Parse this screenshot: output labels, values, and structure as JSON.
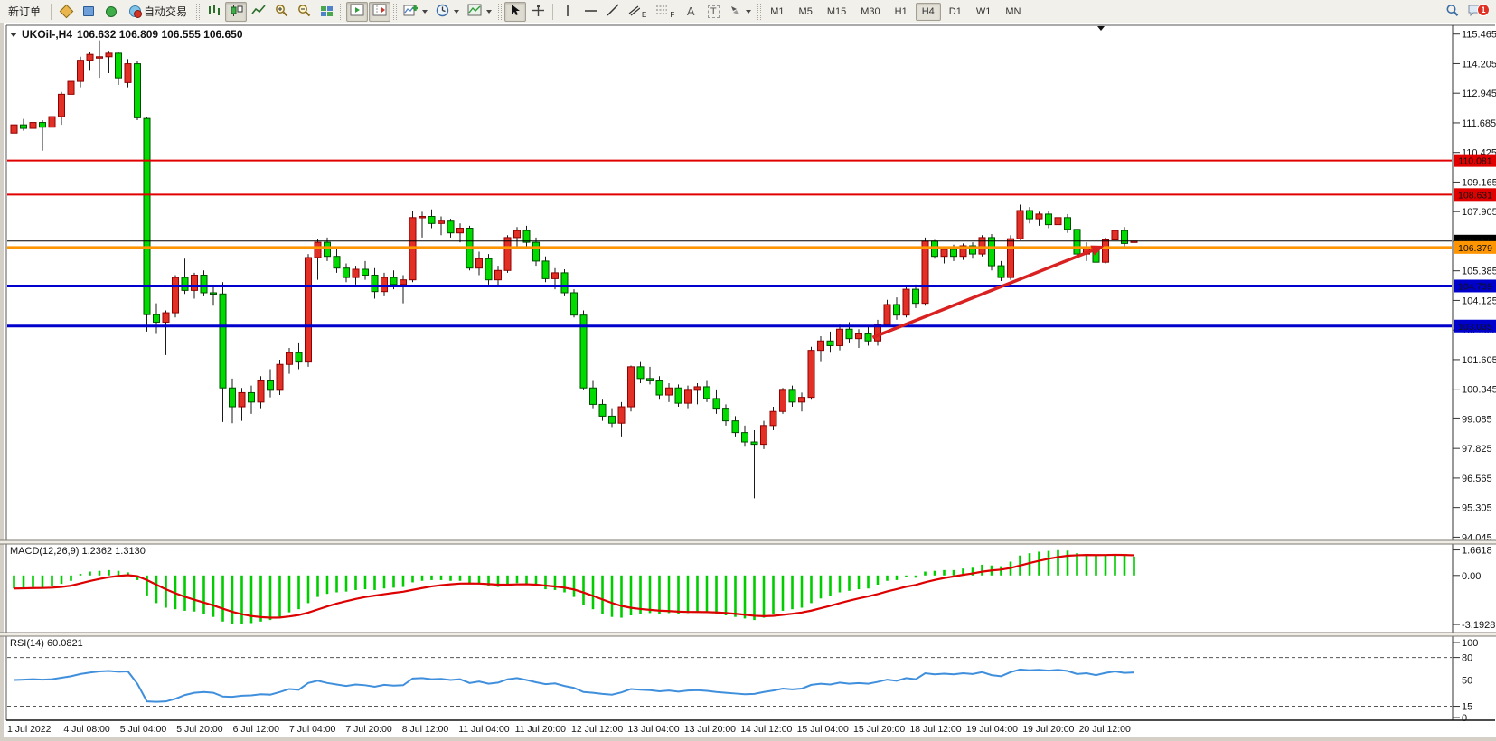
{
  "toolbar": {
    "new_order_label": "新订单",
    "auto_trading_label": "自动交易",
    "tool_letter_a": "A",
    "tool_letter_t": "T",
    "channel_subscript": "E",
    "fibonacci_subscript": "F",
    "timeframes": [
      "M1",
      "M5",
      "M15",
      "M30",
      "H1",
      "H4",
      "D1",
      "W1",
      "MN"
    ],
    "active_timeframe": "H4",
    "notification_badge": "1"
  },
  "chart_header": {
    "symbol_period": "UKOil-,H4",
    "ohlc_values": "106.632 106.809 106.555 106.650"
  },
  "indicator_labels": {
    "macd": "MACD(12,26,9) 1.2362 1.3130",
    "rsi": "RSI(14) 60.0821"
  },
  "colors": {
    "bull_fill": "#e33026",
    "bull_border": "#8f0000",
    "bear_fill": "#00dc00",
    "bear_border": "#004d00",
    "wick": "#1a1a1a",
    "macd_hist": "#00cc00",
    "macd_signal": "#dd0000",
    "rsi_line": "#3f8fdc",
    "arrow": "#d92121",
    "axis_text": "#111111"
  },
  "chart_data": [
    {
      "type": "candlestick",
      "title": "UKOil-,H4",
      "x_labels": [
        "1 Jul 2022",
        "4 Jul 08:00",
        "5 Jul 04:00",
        "5 Jul 20:00",
        "6 Jul 12:00",
        "7 Jul 04:00",
        "7 Jul 20:00",
        "8 Jul 12:00",
        "11 Jul 04:00",
        "11 Jul 20:00",
        "12 Jul 12:00",
        "13 Jul 04:00",
        "13 Jul 20:00",
        "14 Jul 12:00",
        "15 Jul 04:00",
        "15 Jul 20:00",
        "18 Jul 12:00",
        "19 Jul 04:00",
        "19 Jul 20:00",
        "20 Jul 12:00"
      ],
      "y_ticks": [
        115.465,
        114.205,
        112.945,
        111.685,
        110.425,
        109.165,
        107.905,
        106.645,
        105.385,
        104.125,
        102.865,
        101.605,
        100.345,
        99.085,
        97.825,
        96.565,
        95.305,
        94.045
      ],
      "ohlc": [
        [
          111.25,
          111.8,
          111.05,
          111.6
        ],
        [
          111.6,
          111.85,
          111.35,
          111.45
        ],
        [
          111.45,
          111.8,
          111.2,
          111.7
        ],
        [
          111.7,
          111.8,
          110.5,
          111.5
        ],
        [
          111.5,
          112.0,
          111.3,
          111.95
        ],
        [
          111.95,
          113.0,
          111.6,
          112.9
        ],
        [
          112.9,
          113.6,
          112.6,
          113.45
        ],
        [
          113.45,
          114.5,
          113.2,
          114.35
        ],
        [
          114.35,
          114.7,
          113.9,
          114.6
        ],
        [
          114.45,
          115.2,
          113.6,
          114.5
        ],
        [
          114.5,
          114.75,
          113.8,
          114.65
        ],
        [
          114.65,
          114.7,
          113.3,
          113.6
        ],
        [
          113.4,
          114.4,
          113.2,
          114.2
        ],
        [
          114.2,
          114.3,
          111.8,
          111.9
        ],
        [
          111.87,
          111.95,
          102.8,
          103.52
        ],
        [
          103.52,
          104.0,
          102.7,
          103.2
        ],
        [
          103.2,
          103.7,
          101.8,
          103.6
        ],
        [
          103.6,
          105.2,
          103.4,
          105.1
        ],
        [
          105.1,
          105.9,
          104.4,
          104.55
        ],
        [
          104.55,
          105.3,
          104.2,
          105.2
        ],
        [
          105.2,
          105.4,
          104.3,
          104.45
        ],
        [
          104.45,
          104.7,
          103.9,
          104.4
        ],
        [
          104.4,
          104.9,
          98.95,
          100.4
        ],
        [
          100.4,
          100.8,
          98.9,
          99.6
        ],
        [
          99.6,
          100.4,
          99.0,
          100.2
        ],
        [
          100.2,
          100.5,
          99.3,
          99.8
        ],
        [
          99.8,
          100.9,
          99.5,
          100.7
        ],
        [
          100.7,
          101.2,
          100.0,
          100.3
        ],
        [
          100.3,
          101.6,
          100.1,
          101.4
        ],
        [
          101.4,
          102.1,
          101.0,
          101.9
        ],
        [
          101.9,
          102.3,
          101.2,
          101.5
        ],
        [
          101.5,
          106.1,
          101.3,
          105.95
        ],
        [
          105.95,
          106.75,
          105.0,
          106.6
        ],
        [
          106.6,
          106.8,
          105.8,
          106.0
        ],
        [
          106.0,
          106.3,
          105.3,
          105.5
        ],
        [
          105.5,
          105.7,
          104.9,
          105.1
        ],
        [
          105.1,
          105.6,
          104.8,
          105.45
        ],
        [
          105.45,
          105.8,
          105.0,
          105.2
        ],
        [
          105.2,
          105.5,
          104.2,
          104.5
        ],
        [
          104.5,
          105.3,
          104.3,
          105.1
        ],
        [
          105.1,
          105.4,
          104.6,
          104.8
        ],
        [
          104.8,
          105.2,
          104.0,
          105.0
        ],
        [
          105.0,
          107.95,
          104.9,
          107.65
        ],
        [
          107.65,
          107.9,
          106.8,
          107.7
        ],
        [
          107.7,
          108.0,
          107.2,
          107.4
        ],
        [
          107.4,
          107.7,
          106.9,
          107.5
        ],
        [
          107.5,
          107.6,
          106.8,
          107.0
        ],
        [
          107.0,
          107.4,
          106.6,
          107.2
        ],
        [
          107.2,
          107.3,
          105.4,
          105.5
        ],
        [
          105.5,
          106.2,
          105.2,
          105.9
        ],
        [
          105.9,
          106.1,
          104.8,
          105.0
        ],
        [
          105.0,
          105.6,
          104.7,
          105.4
        ],
        [
          105.4,
          106.9,
          105.3,
          106.8
        ],
        [
          106.8,
          107.25,
          106.3,
          107.1
        ],
        [
          107.1,
          107.3,
          106.4,
          106.6
        ],
        [
          106.6,
          106.8,
          105.6,
          105.8
        ],
        [
          105.8,
          106.0,
          104.9,
          105.05
        ],
        [
          105.05,
          105.5,
          104.6,
          105.3
        ],
        [
          105.3,
          105.45,
          104.3,
          104.45
        ],
        [
          104.45,
          104.6,
          103.4,
          103.5
        ],
        [
          103.5,
          103.7,
          100.3,
          100.4
        ],
        [
          100.4,
          100.7,
          99.5,
          99.7
        ],
        [
          99.7,
          99.9,
          99.0,
          99.2
        ],
        [
          99.2,
          99.5,
          98.7,
          98.9
        ],
        [
          98.9,
          99.8,
          98.3,
          99.6
        ],
        [
          99.6,
          101.35,
          99.4,
          101.3
        ],
        [
          101.3,
          101.5,
          100.6,
          100.8
        ],
        [
          100.8,
          101.3,
          100.55,
          100.7
        ],
        [
          100.7,
          100.9,
          99.9,
          100.1
        ],
        [
          100.1,
          100.6,
          99.8,
          100.4
        ],
        [
          100.4,
          100.55,
          99.6,
          99.75
        ],
        [
          99.75,
          100.5,
          99.5,
          100.3
        ],
        [
          100.3,
          100.6,
          99.7,
          100.45
        ],
        [
          100.45,
          100.7,
          99.8,
          99.95
        ],
        [
          99.95,
          100.3,
          99.3,
          99.5
        ],
        [
          99.5,
          99.7,
          98.8,
          99.0
        ],
        [
          99.0,
          99.2,
          98.3,
          98.5
        ],
        [
          98.5,
          98.8,
          97.9,
          98.1
        ],
        [
          98.1,
          98.6,
          95.7,
          98.0
        ],
        [
          98.0,
          99.0,
          97.8,
          98.8
        ],
        [
          98.8,
          99.6,
          98.6,
          99.4
        ],
        [
          99.4,
          100.4,
          99.3,
          100.3
        ],
        [
          100.3,
          100.5,
          99.6,
          99.8
        ],
        [
          99.8,
          100.2,
          99.4,
          100.0
        ],
        [
          100.0,
          102.15,
          99.9,
          102.0
        ],
        [
          102.0,
          102.6,
          101.5,
          102.4
        ],
        [
          102.4,
          102.8,
          101.9,
          102.2
        ],
        [
          102.2,
          103.1,
          102.0,
          102.9
        ],
        [
          102.9,
          103.2,
          102.3,
          102.5
        ],
        [
          102.5,
          102.9,
          102.1,
          102.7
        ],
        [
          102.7,
          103.0,
          102.2,
          102.4
        ],
        [
          102.4,
          103.3,
          102.2,
          103.1
        ],
        [
          103.1,
          104.15,
          103.0,
          103.95
        ],
        [
          103.95,
          104.25,
          103.3,
          103.5
        ],
        [
          103.5,
          104.75,
          103.4,
          104.6
        ],
        [
          104.6,
          104.8,
          103.8,
          104.0
        ],
        [
          104.0,
          106.8,
          103.9,
          106.65
        ],
        [
          106.65,
          106.7,
          105.9,
          106.0
        ],
        [
          106.0,
          106.4,
          105.7,
          106.3
        ],
        [
          106.3,
          106.5,
          105.8,
          106.0
        ],
        [
          106.0,
          106.55,
          105.85,
          106.45
        ],
        [
          106.45,
          106.6,
          105.9,
          106.1
        ],
        [
          106.1,
          106.9,
          106.0,
          106.8
        ],
        [
          106.8,
          106.95,
          105.4,
          105.6
        ],
        [
          105.6,
          105.8,
          104.95,
          105.1
        ],
        [
          105.1,
          106.9,
          105.0,
          106.75
        ],
        [
          106.75,
          108.2,
          106.7,
          107.95
        ],
        [
          107.95,
          108.1,
          107.4,
          107.6
        ],
        [
          107.6,
          107.9,
          107.3,
          107.8
        ],
        [
          107.8,
          107.95,
          107.2,
          107.35
        ],
        [
          107.35,
          107.75,
          107.1,
          107.65
        ],
        [
          107.65,
          107.8,
          107.0,
          107.15
        ],
        [
          107.15,
          107.3,
          105.9,
          106.1
        ],
        [
          106.1,
          106.6,
          105.8,
          106.4
        ],
        [
          106.4,
          106.55,
          105.6,
          105.75
        ],
        [
          105.75,
          106.8,
          105.7,
          106.7
        ],
        [
          106.7,
          107.3,
          106.4,
          107.1
        ],
        [
          107.1,
          107.25,
          106.4,
          106.55
        ],
        [
          106.632,
          106.809,
          106.555,
          106.65
        ]
      ],
      "hlines": [
        {
          "price": 110.081,
          "label": "110.081",
          "color": "#e00000",
          "width": 2
        },
        {
          "price": 108.631,
          "label": "108.631",
          "color": "#e00000",
          "width": 2
        },
        {
          "price": 106.65,
          "label": "106.650",
          "color": "#000000",
          "width": 1
        },
        {
          "price": 106.379,
          "label": "106.379",
          "color": "#ff9500",
          "width": 3
        },
        {
          "price": 104.739,
          "label": "104.739",
          "color": "#0000cc",
          "width": 3
        },
        {
          "price": 103.035,
          "label": "103.035",
          "color": "#0000cc",
          "width": 3
        }
      ],
      "arrow": {
        "bar1": 90.8,
        "price1": 102.55,
        "bar2": 115.2,
        "price2": 106.45
      }
    },
    {
      "type": "bar",
      "name": "MACD",
      "label": "MACD(12,26,9) 1.2362 1.3130",
      "values": [
        -0.85,
        -0.8,
        -0.75,
        -0.8,
        -0.7,
        -0.55,
        -0.35,
        0.1,
        0.25,
        0.3,
        0.35,
        0.3,
        0.2,
        -0.3,
        -1.3,
        -1.8,
        -2.1,
        -2.2,
        -2.3,
        -2.35,
        -2.5,
        -2.7,
        -3.0,
        -3.19,
        -3.15,
        -3.1,
        -3.0,
        -2.9,
        -2.7,
        -2.4,
        -2.2,
        -1.8,
        -1.4,
        -1.2,
        -1.1,
        -1.05,
        -0.95,
        -0.9,
        -0.95,
        -0.85,
        -0.8,
        -0.75,
        -0.45,
        -0.35,
        -0.3,
        -0.3,
        -0.35,
        -0.35,
        -0.5,
        -0.55,
        -0.7,
        -0.75,
        -0.6,
        -0.5,
        -0.55,
        -0.7,
        -0.9,
        -0.95,
        -1.1,
        -1.4,
        -1.9,
        -2.2,
        -2.5,
        -2.7,
        -2.75,
        -2.6,
        -2.5,
        -2.45,
        -2.5,
        -2.45,
        -2.5,
        -2.45,
        -2.4,
        -2.4,
        -2.5,
        -2.6,
        -2.7,
        -2.8,
        -2.9,
        -2.75,
        -2.55,
        -2.3,
        -2.2,
        -2.1,
        -1.8,
        -1.5,
        -1.35,
        -1.1,
        -1.0,
        -0.9,
        -0.85,
        -0.6,
        -0.35,
        -0.3,
        -0.1,
        -0.15,
        0.25,
        0.3,
        0.35,
        0.35,
        0.45,
        0.5,
        0.7,
        0.65,
        0.6,
        0.9,
        1.3,
        1.45,
        1.55,
        1.6,
        1.65,
        1.62,
        1.45,
        1.4,
        1.3,
        1.35,
        1.4,
        1.3,
        1.2362
      ],
      "y_tick_labels": [
        "1.6618",
        "0.00",
        "-3.1928"
      ],
      "y_tick_values": [
        1.6618,
        0,
        -3.1928
      ]
    },
    {
      "type": "line",
      "name": "RSI",
      "label": "RSI(14) 60.0821",
      "values": [
        50,
        50.5,
        51,
        50.5,
        51,
        53,
        55,
        58,
        60,
        61.5,
        62,
        61,
        61.5,
        45,
        21.5,
        21,
        21.5,
        25,
        30,
        33,
        34,
        33,
        28,
        27.5,
        29,
        29.5,
        31,
        30.5,
        34,
        38,
        37,
        46,
        49,
        46,
        44,
        42,
        44,
        43,
        41,
        43.5,
        42.5,
        43,
        52,
        52.5,
        51,
        51.5,
        50,
        51,
        46,
        48,
        45,
        46.5,
        51,
        52.5,
        50,
        47,
        44.5,
        45.5,
        42,
        39.5,
        34,
        33,
        31.5,
        30.5,
        33.5,
        38,
        37,
        36.5,
        35,
        36,
        34.5,
        36,
        36.5,
        35.5,
        34,
        33,
        32,
        31,
        31.5,
        34,
        36,
        38.5,
        37.5,
        38.5,
        43.5,
        45,
        44,
        46.5,
        45,
        46,
        45,
        47.5,
        50.5,
        49,
        52.5,
        51,
        59,
        57.5,
        58.5,
        57.5,
        59,
        58,
        60.5,
        56.5,
        55,
        60.5,
        64,
        63,
        63.5,
        62.5,
        63.5,
        62,
        58,
        59,
        56.5,
        59.5,
        61.5,
        59.5,
        60.0821
      ],
      "levels": [
        80,
        50,
        15
      ],
      "y_ticks": [
        100,
        80,
        50,
        15,
        0
      ]
    }
  ]
}
